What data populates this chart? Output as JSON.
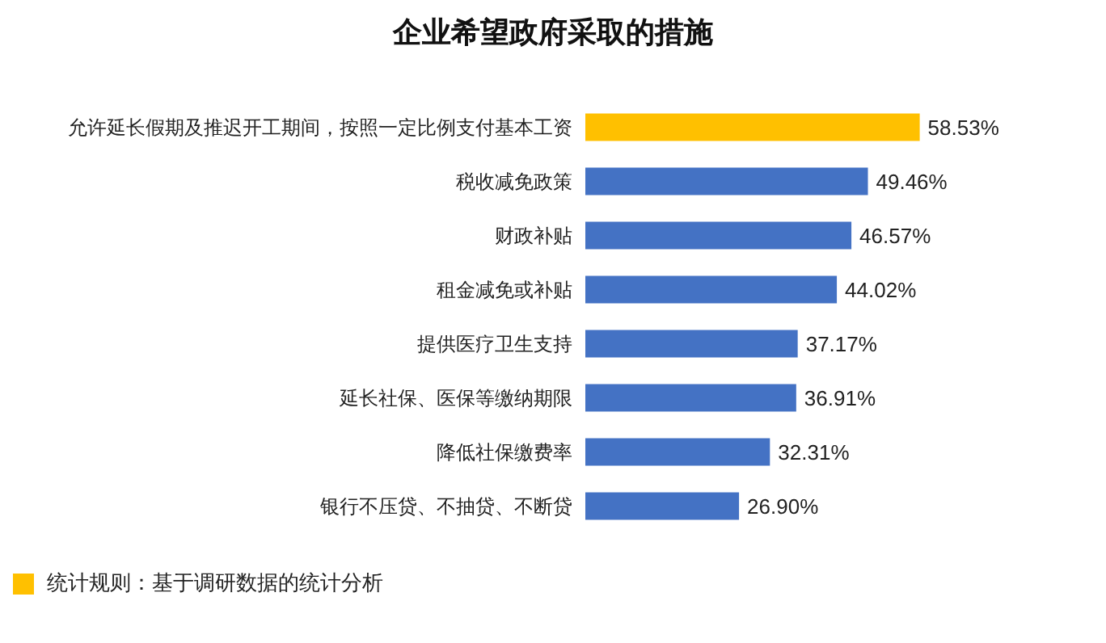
{
  "chart_data": {
    "type": "bar",
    "orientation": "horizontal",
    "title": "企业希望政府采取的措施",
    "categories": [
      "允许延长假期及推迟开工期间，按照一定比例支付基本工资",
      "税收减免政策",
      "财政补贴",
      "租金减免或补贴",
      "提供医疗卫生支持",
      "延长社保、医保等缴纳期限",
      "降低社保缴费率",
      "银行不压贷、不抽贷、不断贷"
    ],
    "values": [
      58.53,
      49.46,
      46.57,
      44.02,
      37.17,
      36.91,
      32.31,
      26.9
    ],
    "colors": [
      "#ffc000",
      "#4472c4",
      "#4472c4",
      "#4472c4",
      "#4472c4",
      "#4472c4",
      "#4472c4",
      "#4472c4"
    ],
    "value_labels": [
      "58.53%",
      "49.46%",
      "46.57%",
      "44.02%",
      "37.17%",
      "36.91%",
      "32.31%",
      "26.90%"
    ],
    "annotations": [
      "统计规则：基于调研数据的统计分析"
    ]
  }
}
